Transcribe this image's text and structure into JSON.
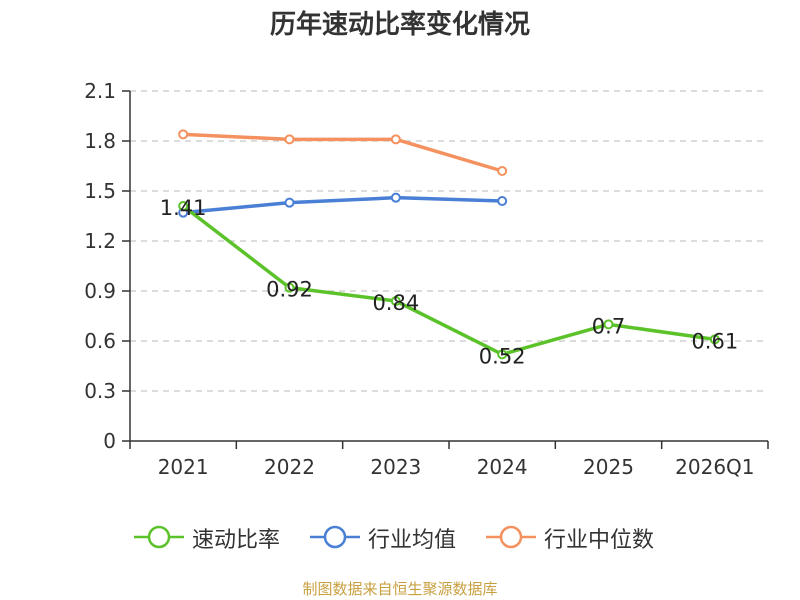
{
  "chart_data": {
    "type": "line",
    "title": "历年速动比率变化情况",
    "categories": [
      "2021",
      "2022",
      "2023",
      "2024",
      "2025",
      "2026Q1"
    ],
    "y_ticks": [
      "0",
      "0.3",
      "0.6",
      "0.9",
      "1.2",
      "1.5",
      "1.8",
      "2.1"
    ],
    "ylim": [
      0,
      2.1
    ],
    "grid": true,
    "legend_position": "bottom",
    "series": [
      {
        "name": "速动比率",
        "color": "#5bc22a",
        "values": [
          1.41,
          0.92,
          0.84,
          0.52,
          0.7,
          0.61
        ],
        "data_labels": [
          "1.41",
          "0.92",
          "0.84",
          "0.52",
          "0.7",
          "0.61"
        ]
      },
      {
        "name": "行业均值",
        "color": "#4a7fd6",
        "values": [
          1.37,
          1.43,
          1.46,
          1.44,
          null,
          null
        ]
      },
      {
        "name": "行业中位数",
        "color": "#f4915e",
        "values": [
          1.84,
          1.81,
          1.81,
          1.62,
          null,
          null
        ]
      }
    ]
  },
  "source": "制图数据来自恒生聚源数据库"
}
